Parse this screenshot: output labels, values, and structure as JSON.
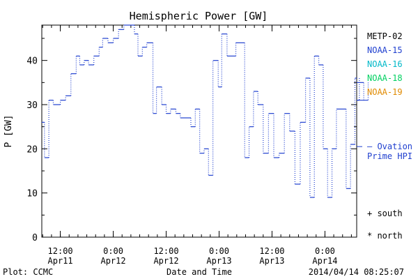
{
  "chart_data": {
    "type": "line",
    "title": "Hemispheric Power [GW]",
    "xlabel": "Date and Time",
    "ylabel": "P [GW]",
    "ylim": [
      0,
      48
    ],
    "xlim": [
      "2014-04-11 07:48",
      "2014-04-14 07:12"
    ],
    "grid": false,
    "yticks": [
      0,
      10,
      20,
      30,
      40
    ],
    "xticks": [
      {
        "at": "2014-04-11 12:00",
        "label": "12:00",
        "sublabel": "Apr11"
      },
      {
        "at": "2014-04-12 00:00",
        "label": "0:00",
        "sublabel": "Apr12"
      },
      {
        "at": "2014-04-12 12:00",
        "label": "12:00",
        "sublabel": "Apr12"
      },
      {
        "at": "2014-04-13 00:00",
        "label": "0:00",
        "sublabel": "Apr13"
      },
      {
        "at": "2014-04-13 12:00",
        "label": "12:00",
        "sublabel": "Apr13"
      },
      {
        "at": "2014-04-14 00:00",
        "label": "0:00",
        "sublabel": "Apr14"
      }
    ],
    "legend": {
      "placement": "right",
      "entries": [
        {
          "label": "METP-02",
          "color": "#000000"
        },
        {
          "label": "NOAA-15",
          "color": "#1f3fcf"
        },
        {
          "label": "NOAA-16",
          "color": "#00b8c8"
        },
        {
          "label": "NOAA-18",
          "color": "#00d060"
        },
        {
          "label": "NOAA-19",
          "color": "#e08a00"
        }
      ],
      "ovation": {
        "line1": "– Ovation",
        "line2": "Prime HPI",
        "color": "#1f3fcf",
        "level": 20.5
      },
      "markers": [
        {
          "label": "+ south"
        },
        {
          "label": "* north"
        }
      ]
    },
    "series": [
      {
        "name": "Ovation Prime HPI",
        "color": "#1f3fcf",
        "x": [
          "2014-04-11 07:48",
          "2014-04-11 08:24",
          "2014-04-11 09:24",
          "2014-04-11 10:24",
          "2014-04-11 12:00",
          "2014-04-11 13:12",
          "2014-04-11 14:24",
          "2014-04-11 15:36",
          "2014-04-11 16:24",
          "2014-04-11 17:24",
          "2014-04-11 18:24",
          "2014-04-11 19:36",
          "2014-04-11 20:48",
          "2014-04-11 21:36",
          "2014-04-11 22:48",
          "2014-04-12 00:00",
          "2014-04-12 01:12",
          "2014-04-12 02:24",
          "2014-04-12 04:48",
          "2014-04-12 05:36",
          "2014-04-12 06:36",
          "2014-04-12 07:36",
          "2014-04-12 09:00",
          "2014-04-12 09:48",
          "2014-04-12 11:00",
          "2014-04-12 12:00",
          "2014-04-12 13:00",
          "2014-04-12 14:12",
          "2014-04-12 15:12",
          "2014-04-12 17:36",
          "2014-04-12 18:36",
          "2014-04-12 19:36",
          "2014-04-12 20:36",
          "2014-04-12 21:36",
          "2014-04-12 22:36",
          "2014-04-12 23:48",
          "2014-04-13 00:36",
          "2014-04-13 01:48",
          "2014-04-13 03:48",
          "2014-04-13 05:48",
          "2014-04-13 06:48",
          "2014-04-13 07:48",
          "2014-04-13 08:48",
          "2014-04-13 10:00",
          "2014-04-13 11:12",
          "2014-04-13 12:24",
          "2014-04-13 13:36",
          "2014-04-13 14:48",
          "2014-04-13 16:00",
          "2014-04-13 17:12",
          "2014-04-13 18:24",
          "2014-04-13 19:36",
          "2014-04-13 20:36",
          "2014-04-13 21:36",
          "2014-04-13 22:36",
          "2014-04-13 23:36",
          "2014-04-14 00:36",
          "2014-04-14 01:36",
          "2014-04-14 02:36",
          "2014-04-14 04:48",
          "2014-04-14 05:48",
          "2014-04-14 06:48"
        ],
        "values": [
          26,
          18,
          31,
          30,
          31,
          32,
          37,
          41,
          39,
          40,
          39,
          41,
          43,
          45,
          44,
          45,
          47,
          48,
          46,
          41,
          43,
          44,
          28,
          34,
          30,
          28,
          29,
          28,
          27,
          25,
          29,
          19,
          20,
          14,
          40,
          34,
          46,
          41,
          44,
          18,
          25,
          33,
          30,
          19,
          28,
          18,
          19,
          28,
          24,
          12,
          26,
          36,
          9,
          41,
          39,
          20,
          9,
          20,
          29,
          11,
          21,
          36
        ],
        "tail": [
          {
            "x": "2014-04-14 07:48",
            "value": 31
          },
          {
            "x": "2014-04-14 08:48",
            "value": 35
          },
          {
            "x": "2014-04-14 09:48",
            "value": 31
          }
        ]
      }
    ]
  },
  "footer": {
    "plot_credit": "Plot: CCMC",
    "timestamp": "2014/04/14 08:25:07"
  }
}
